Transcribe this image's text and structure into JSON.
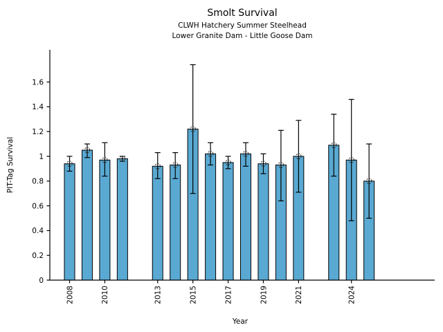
{
  "chart_data": {
    "type": "bar",
    "title": "Smolt Survival",
    "subtitle_line1": "CLWH Hatchery Summer Steelhead",
    "subtitle_line2": "Lower Granite Dam - Little Goose Dam",
    "xlabel": "Year",
    "ylabel": "PIT-Tag Survival",
    "categories": [
      2008,
      2009,
      2010,
      2011,
      2013,
      2014,
      2015,
      2016,
      2017,
      2018,
      2019,
      2020,
      2021,
      2023,
      2024,
      2025
    ],
    "values": [
      0.94,
      1.05,
      0.97,
      0.98,
      0.92,
      0.93,
      1.22,
      1.02,
      0.95,
      1.02,
      0.94,
      0.93,
      1.0,
      1.09,
      0.97,
      0.8
    ],
    "error_low": [
      0.88,
      0.99,
      0.84,
      0.96,
      0.82,
      0.82,
      0.7,
      0.93,
      0.9,
      0.92,
      0.86,
      0.64,
      0.71,
      0.84,
      0.48,
      0.5
    ],
    "error_high": [
      1.0,
      1.1,
      1.11,
      1.0,
      1.03,
      1.03,
      1.74,
      1.11,
      1.0,
      1.11,
      1.02,
      1.21,
      1.29,
      1.34,
      1.46,
      1.1
    ],
    "xtick_years": [
      2008,
      2010,
      2013,
      2015,
      2017,
      2019,
      2021,
      2024
    ],
    "xtick_labels": [
      "2008",
      "2010",
      "2013",
      "2015",
      "2017",
      "2019",
      "2021",
      "2024"
    ],
    "ytick_values": [
      0,
      0.2,
      0.4,
      0.6,
      0.8,
      1.0,
      1.2,
      1.4,
      1.6
    ],
    "ytick_labels": [
      "0",
      "0.2",
      "0.4",
      "0.6",
      "0.8",
      "1",
      "1.2",
      "1.4",
      "1.6"
    ],
    "ylim": [
      0,
      1.86
    ],
    "xlim": [
      2006.9,
      2028.7
    ],
    "missing_years": [
      2012,
      2022
    ],
    "grid": false,
    "legend": null,
    "colors": {
      "bar_fill": "#59A9D2",
      "bar_edge": "#000000",
      "error_bar": "#000000",
      "marker_stroke": "#333333",
      "background": "#FFFFFF",
      "text": "#000000"
    }
  }
}
